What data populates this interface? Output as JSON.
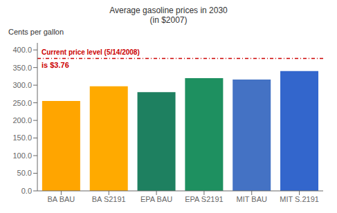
{
  "chart_data": {
    "type": "bar",
    "title": "Average gasoline prices in 2030",
    "subtitle": "(in $2007)",
    "ylabel": "Cents per gallon",
    "categories": [
      "BA BAU",
      "BA S2191",
      "EPA BAU",
      "EPA S2191",
      "MIT BAU",
      "MIT S.2191"
    ],
    "values": [
      255,
      297,
      280,
      320,
      316,
      340
    ],
    "colors": [
      "#FFA500",
      "#FFAA00",
      "#1E8060",
      "#1E9060",
      "#4472C4",
      "#3366CC"
    ],
    "ylim": [
      0,
      420
    ],
    "yticks": [
      {
        "value": 0,
        "label": "0.0"
      },
      {
        "value": 50,
        "label": "50.0"
      },
      {
        "value": 100,
        "label": "100.0"
      },
      {
        "value": 150,
        "label": "150.0"
      },
      {
        "value": 200,
        "label": "200.0"
      },
      {
        "value": 250,
        "label": "250.0"
      },
      {
        "value": 300,
        "label": "300.0"
      },
      {
        "value": 350,
        "label": "350.0"
      },
      {
        "value": 400,
        "label": "400.0"
      }
    ],
    "grid": false,
    "annotations": [
      {
        "y": 376,
        "color": "#CC0000",
        "line_style": "dashdot",
        "texts": [
          "Current price level (5/14/2008)",
          "is $3.76"
        ]
      }
    ]
  }
}
